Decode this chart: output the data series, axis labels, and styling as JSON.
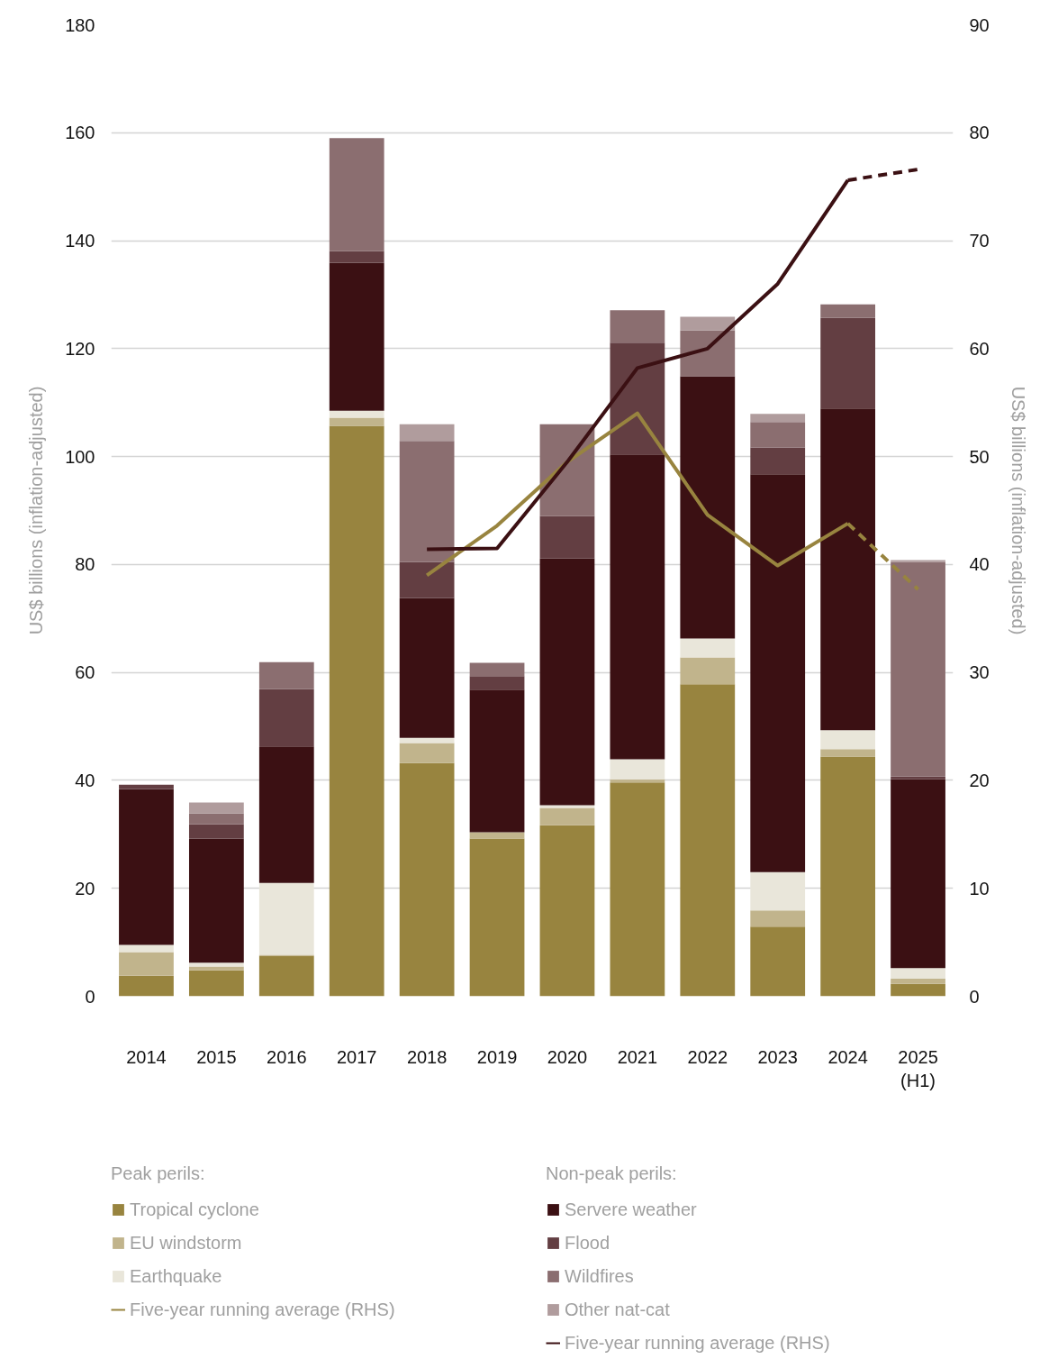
{
  "chart_data": {
    "type": "bar",
    "stacked": true,
    "categories": [
      "2014",
      "2015",
      "2016",
      "2017",
      "2018",
      "2019",
      "2020",
      "2021",
      "2022",
      "2023",
      "2024",
      "2025\n(H1)"
    ],
    "ylabel": "US$ billions (inflation-adjusted)",
    "y2label": "US$ billions (inflation-adjusted)",
    "ylim": [
      0,
      180
    ],
    "yticks": [
      0,
      20,
      40,
      60,
      80,
      100,
      120,
      140,
      160,
      180
    ],
    "y2lim": [
      0,
      90
    ],
    "y2ticks": [
      0,
      10,
      20,
      30,
      40,
      50,
      60,
      70,
      80,
      90
    ],
    "grid": "y",
    "legend": "bottom",
    "annotations": [
      "Peak perils:",
      "Non-peak perils:"
    ],
    "series": [
      {
        "name": "Tropical cyclone",
        "color": "#98843f",
        "values": [
          3.8,
          4.8,
          7.5,
          105.7,
          43.2,
          29.2,
          31.7,
          39.6,
          57.8,
          12.9,
          44.4,
          2.3
        ]
      },
      {
        "name": "EU windstorm",
        "color": "#c1b48c",
        "values": [
          4.4,
          0.7,
          0.2,
          1.5,
          3.7,
          1.2,
          3.2,
          0.6,
          5.0,
          3.0,
          1.4,
          1.0
        ]
      },
      {
        "name": "Earthquake",
        "color": "#e9e6da",
        "values": [
          1.3,
          0.7,
          13.3,
          1.3,
          1.0,
          0,
          0.5,
          3.7,
          3.5,
          7.1,
          3.5,
          1.9
        ]
      },
      {
        "name": "Five-year running average (RHS)",
        "type": "line",
        "axis": "y2",
        "line_style": "solid",
        "color": "#98843f",
        "values": [
          null,
          null,
          null,
          null,
          39.0,
          43.6,
          49.5,
          54.0,
          44.6,
          39.9,
          43.8,
          null
        ]
      },
      {
        "name": "Servere weather",
        "color": "#3b1013",
        "values": [
          28.9,
          23.0,
          25.3,
          27.4,
          25.9,
          26.4,
          45.7,
          56.5,
          48.6,
          73.7,
          59.6,
          35.0
        ]
      },
      {
        "name": "Flood",
        "color": "#633e42",
        "values": [
          0.8,
          2.7,
          10.6,
          2.2,
          6.7,
          2.5,
          7.9,
          20.7,
          0,
          5.0,
          16.8,
          0.5
        ]
      },
      {
        "name": "Wildfires",
        "color": "#8b6e70",
        "values": [
          0,
          2.0,
          5.0,
          20.9,
          22.4,
          2.5,
          17.0,
          6.0,
          8.5,
          4.7,
          2.5,
          39.8
        ]
      },
      {
        "name": "Other nat-cat",
        "color": "#b09c9d",
        "values": [
          0,
          2.0,
          0,
          0,
          3.1,
          0,
          0,
          0,
          2.5,
          1.5,
          0,
          0.3
        ]
      },
      {
        "name": "Five-year running average (RHS)",
        "type": "line",
        "axis": "y2",
        "line_style": "solid",
        "color": "#3b1013",
        "values": [
          null,
          null,
          null,
          null,
          41.4,
          41.5,
          49.5,
          58.2,
          60.0,
          66.0,
          75.6,
          null
        ]
      },
      {
        "type": "line",
        "axis": "y2",
        "line_style": "dashed",
        "color": "#98843f",
        "values": [
          null,
          null,
          null,
          null,
          null,
          null,
          null,
          null,
          null,
          null,
          43.8,
          37.7
        ]
      },
      {
        "type": "line",
        "axis": "y2",
        "line_style": "dashed",
        "color": "#3b1013",
        "values": [
          null,
          null,
          null,
          null,
          null,
          null,
          null,
          null,
          null,
          null,
          75.6,
          76.6
        ]
      }
    ]
  }
}
